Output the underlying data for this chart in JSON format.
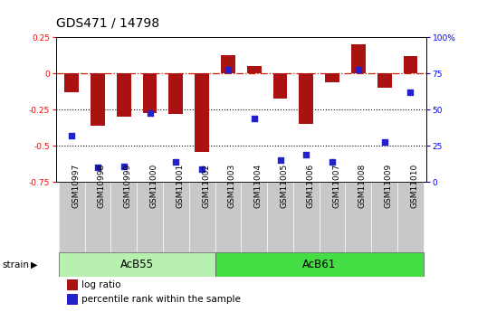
{
  "title": "GDS471 / 14798",
  "samples": [
    "GSM10997",
    "GSM10998",
    "GSM10999",
    "GSM11000",
    "GSM11001",
    "GSM11002",
    "GSM11003",
    "GSM11004",
    "GSM11005",
    "GSM11006",
    "GSM11007",
    "GSM11008",
    "GSM11009",
    "GSM11010"
  ],
  "log_ratio": [
    -0.13,
    -0.36,
    -0.3,
    -0.27,
    -0.28,
    -0.54,
    0.13,
    0.05,
    -0.17,
    -0.35,
    -0.06,
    0.2,
    -0.1,
    0.12
  ],
  "percentile_rank": [
    32,
    10,
    11,
    48,
    14,
    9,
    78,
    44,
    15,
    19,
    14,
    78,
    28,
    62
  ],
  "ylim_left": [
    -0.75,
    0.25
  ],
  "ylim_right": [
    0,
    100
  ],
  "yticks_left": [
    -0.75,
    -0.5,
    -0.25,
    0.0,
    0.25
  ],
  "ytick_labels_left": [
    "-0.75",
    "-0.5",
    "-0.25",
    "0",
    "0.25"
  ],
  "yticks_right": [
    0,
    25,
    50,
    75,
    100
  ],
  "ytick_labels_right": [
    "0",
    "25",
    "50",
    "75",
    "100%"
  ],
  "bar_color": "#AA1111",
  "dot_color": "#2222CC",
  "bg_color": "#ffffff",
  "plot_bg_color": "#ffffff",
  "xticklabel_bg": "#C8C8C8",
  "strain_group1_color": "#B8F0B0",
  "strain_group2_color": "#44DD44",
  "strain_groups": [
    {
      "label": "AcB55",
      "start": 0,
      "end": 5
    },
    {
      "label": "AcB61",
      "start": 6,
      "end": 13
    }
  ],
  "legend_label1": "log ratio",
  "legend_label2": "percentile rank within the sample",
  "strain_label": "strain",
  "title_fontsize": 10,
  "tick_fontsize": 6.5,
  "strain_fontsize": 8.5
}
